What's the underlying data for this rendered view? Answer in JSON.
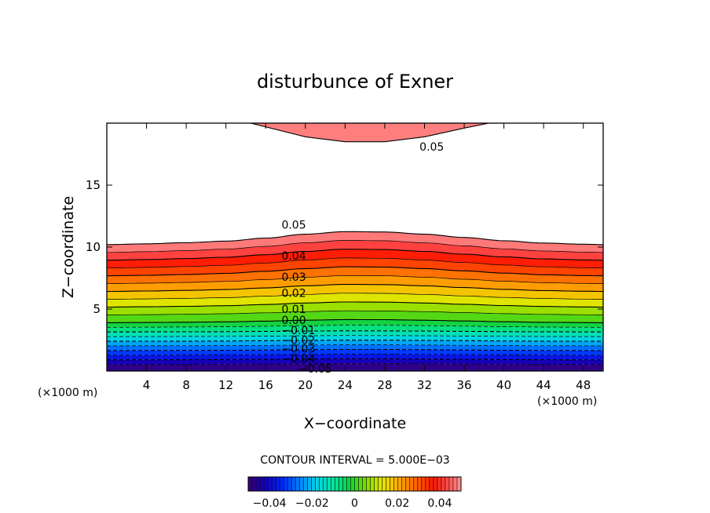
{
  "chart_data": {
    "type": "contour",
    "title": "disturbunce of Exner",
    "xlabel": "X−coordinate",
    "ylabel": "Z−coordinate",
    "x_unit": "(×1000 m)",
    "y_unit": "(×1000 m)",
    "xlim": [
      0,
      50
    ],
    "ylim": [
      0,
      20
    ],
    "x_ticks": [
      4,
      8,
      12,
      16,
      20,
      24,
      28,
      32,
      36,
      40,
      44,
      48
    ],
    "x_tick_labels": [
      "4",
      "8",
      "12",
      "16",
      "20",
      "24",
      "28",
      "32",
      "36",
      "40",
      "44",
      "48"
    ],
    "y_ticks": [
      5,
      10,
      15
    ],
    "y_tick_labels": [
      "5",
      "10",
      "15"
    ],
    "contour_interval_text": "CONTOUR INTERVAL = 5.000E−03",
    "contour_interval": 0.005,
    "contour_labels": [
      {
        "text": "0.05",
        "x": 31.5,
        "y": 18.1
      },
      {
        "text": "0.05",
        "x": 17.6,
        "y": 11.8
      },
      {
        "text": "0.04",
        "x": 17.6,
        "y": 9.3
      },
      {
        "text": "0.03",
        "x": 17.6,
        "y": 7.6
      },
      {
        "text": "0.02",
        "x": 17.6,
        "y": 6.3
      },
      {
        "text": "0.01",
        "x": 17.6,
        "y": 5.0
      },
      {
        "text": "0.00",
        "x": 17.6,
        "y": 4.1
      },
      {
        "text": "−0.01",
        "x": 17.6,
        "y": 3.3
      },
      {
        "text": "−0.02",
        "x": 17.6,
        "y": 2.5
      },
      {
        "text": "−0.03",
        "x": 17.6,
        "y": 1.8
      },
      {
        "text": "−0.04",
        "x": 17.6,
        "y": 1.0
      },
      {
        "text": "−0.05",
        "x": 19.3,
        "y": 0.2
      }
    ],
    "profile": {
      "x": [
        0,
        4,
        8,
        12,
        16,
        20,
        24,
        28,
        32,
        36,
        40,
        44,
        48,
        50
      ],
      "bump": [
        0.0,
        0.06,
        0.15,
        0.27,
        0.5,
        0.8,
        1.0,
        0.97,
        0.8,
        0.55,
        0.3,
        0.12,
        0.03,
        0.0
      ]
    },
    "upper_region": {
      "level": 0.05,
      "x": [
        14.5,
        20,
        24,
        28,
        32,
        36,
        38.5
      ],
      "y": [
        20,
        18.9,
        18.5,
        18.5,
        18.9,
        19.6,
        20
      ]
    },
    "colorbar": {
      "range": [
        -0.05,
        0.05
      ],
      "tick_values": [
        -0.04,
        -0.02,
        0,
        0.02,
        0.04
      ],
      "tick_labels": [
        "−0.04",
        "−0.02",
        "0",
        "0.02",
        "0.04"
      ]
    }
  }
}
